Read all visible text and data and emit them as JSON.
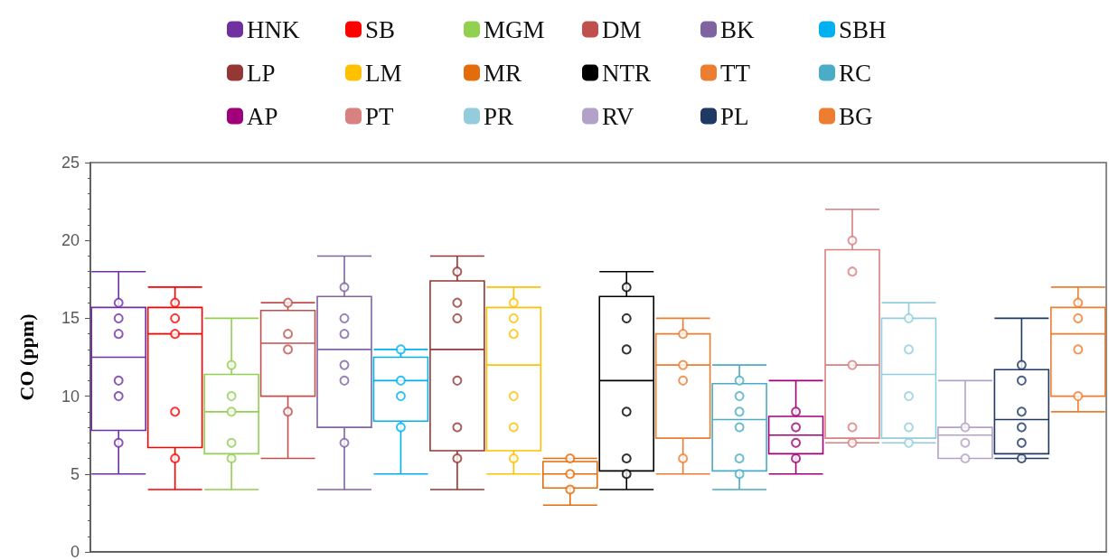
{
  "chart_data": {
    "type": "box",
    "ylabel": "CO (ppm)",
    "categories": [
      null,
      null,
      null,
      null,
      null,
      null,
      null,
      null,
      null,
      null,
      null,
      null,
      null,
      null,
      null,
      null,
      null,
      null
    ],
    "ylim": [
      0,
      25
    ],
    "yticks": [
      0,
      5,
      10,
      15,
      20,
      25
    ],
    "legend": "top",
    "marker": "circle",
    "grid": false,
    "series": [
      {
        "name": "HNK",
        "color": "#7030a0",
        "boxes": [
          {
            "low": 5,
            "q1": 7.8,
            "median": 12.5,
            "q3": 15.7,
            "high": 18,
            "outliers": [
              16,
              15,
              14,
              11,
              10,
              7
            ]
          },
          null,
          null,
          null,
          null,
          null,
          null,
          null,
          null,
          null,
          null,
          null,
          null,
          null,
          null,
          null,
          null,
          null
        ]
      },
      {
        "name": "SB",
        "color": "#ff0000",
        "boxes": [
          null,
          {
            "low": 4,
            "q1": 6.7,
            "median": 14,
            "q3": 15.7,
            "high": 17,
            "outliers": [
              16,
              15,
              14,
              9,
              6
            ]
          },
          null,
          null,
          null,
          null,
          null,
          null,
          null,
          null,
          null,
          null,
          null,
          null,
          null,
          null,
          null,
          null
        ]
      },
      {
        "name": "MGM",
        "color": "#92d050",
        "boxes": [
          null,
          null,
          {
            "low": 4,
            "q1": 6.3,
            "median": 9,
            "q3": 11.4,
            "high": 15,
            "outliers": [
              12,
              10,
              9,
              7,
              6
            ]
          },
          null,
          null,
          null,
          null,
          null,
          null,
          null,
          null,
          null,
          null,
          null,
          null,
          null,
          null,
          null
        ]
      },
      {
        "name": "DM",
        "color": "#c0504d",
        "boxes": [
          null,
          null,
          null,
          {
            "low": 6,
            "q1": 10,
            "median": 13.4,
            "q3": 15.5,
            "high": 16,
            "outliers": [
              16,
              14,
              13,
              9
            ]
          },
          null,
          null,
          null,
          null,
          null,
          null,
          null,
          null,
          null,
          null,
          null,
          null,
          null,
          null
        ]
      },
      {
        "name": "BK",
        "color": "#8064a2",
        "boxes": [
          null,
          null,
          null,
          null,
          {
            "low": 4,
            "q1": 8,
            "median": 13,
            "q3": 16.4,
            "high": 19,
            "outliers": [
              17,
              15,
              14,
              12,
              11,
              7
            ]
          },
          null,
          null,
          null,
          null,
          null,
          null,
          null,
          null,
          null,
          null,
          null,
          null,
          null
        ]
      },
      {
        "name": "SBH",
        "color": "#00b0f0",
        "boxes": [
          null,
          null,
          null,
          null,
          null,
          {
            "low": 5,
            "q1": 8.4,
            "median": 11,
            "q3": 12.5,
            "high": 13,
            "outliers": [
              13,
              11,
              10,
              8
            ]
          },
          null,
          null,
          null,
          null,
          null,
          null,
          null,
          null,
          null,
          null,
          null,
          null
        ]
      },
      {
        "name": "LP",
        "color": "#953735",
        "boxes": [
          null,
          null,
          null,
          null,
          null,
          null,
          {
            "low": 4,
            "q1": 6.5,
            "median": 13,
            "q3": 17.4,
            "high": 19,
            "outliers": [
              18,
              16,
              15,
              11,
              8,
              6
            ]
          },
          null,
          null,
          null,
          null,
          null,
          null,
          null,
          null,
          null,
          null,
          null
        ]
      },
      {
        "name": "LM",
        "color": "#ffc000",
        "boxes": [
          null,
          null,
          null,
          null,
          null,
          null,
          null,
          {
            "low": 5,
            "q1": 6.5,
            "median": 12,
            "q3": 15.7,
            "high": 17,
            "outliers": [
              16,
              15,
              14,
              10,
              8,
              6
            ]
          },
          null,
          null,
          null,
          null,
          null,
          null,
          null,
          null,
          null,
          null
        ]
      },
      {
        "name": "MR",
        "color": "#e46c0a",
        "boxes": [
          null,
          null,
          null,
          null,
          null,
          null,
          null,
          null,
          {
            "low": 3,
            "q1": 4.1,
            "median": 5,
            "q3": 5.8,
            "high": 6,
            "outliers": [
              6,
              5,
              4
            ]
          },
          null,
          null,
          null,
          null,
          null,
          null,
          null,
          null,
          null
        ]
      },
      {
        "name": "NTR",
        "color": "#000000",
        "boxes": [
          null,
          null,
          null,
          null,
          null,
          null,
          null,
          null,
          null,
          {
            "low": 4,
            "q1": 5.2,
            "median": 11,
            "q3": 16.4,
            "high": 18,
            "outliers": [
              17,
              15,
              13,
              9,
              6,
              5
            ]
          },
          null,
          null,
          null,
          null,
          null,
          null,
          null,
          null
        ]
      },
      {
        "name": "TT",
        "color": "#ed7d31",
        "boxes": [
          null,
          null,
          null,
          null,
          null,
          null,
          null,
          null,
          null,
          null,
          {
            "low": 5,
            "q1": 7.3,
            "median": 12,
            "q3": 14,
            "high": 15,
            "outliers": [
              14,
              12,
              11,
              6
            ]
          },
          null,
          null,
          null,
          null,
          null,
          null,
          null
        ]
      },
      {
        "name": "RC",
        "color": "#4bacc6",
        "boxes": [
          null,
          null,
          null,
          null,
          null,
          null,
          null,
          null,
          null,
          null,
          null,
          {
            "low": 4,
            "q1": 5.2,
            "median": 8.5,
            "q3": 10.8,
            "high": 12,
            "outliers": [
              11,
              10,
              9,
              8,
              6,
              5
            ]
          },
          null,
          null,
          null,
          null,
          null,
          null
        ]
      },
      {
        "name": "AP",
        "color": "#a0007a",
        "boxes": [
          null,
          null,
          null,
          null,
          null,
          null,
          null,
          null,
          null,
          null,
          null,
          null,
          {
            "low": 5,
            "q1": 6.3,
            "median": 7.5,
            "q3": 8.7,
            "high": 11,
            "outliers": [
              9,
              8,
              7,
              6
            ]
          },
          null,
          null,
          null,
          null,
          null
        ]
      },
      {
        "name": "PT",
        "color": "#d98080",
        "boxes": [
          null,
          null,
          null,
          null,
          null,
          null,
          null,
          null,
          null,
          null,
          null,
          null,
          null,
          {
            "low": 7,
            "q1": 7.3,
            "median": 12,
            "q3": 19.4,
            "high": 22,
            "outliers": [
              20,
              18,
              12,
              8,
              7
            ]
          },
          null,
          null,
          null,
          null
        ]
      },
      {
        "name": "PR",
        "color": "#93cddd",
        "boxes": [
          null,
          null,
          null,
          null,
          null,
          null,
          null,
          null,
          null,
          null,
          null,
          null,
          null,
          null,
          {
            "low": 7,
            "q1": 7.3,
            "median": 11.4,
            "q3": 15,
            "high": 16,
            "outliers": [
              15,
              13,
              10,
              8,
              7
            ]
          },
          null,
          null,
          null
        ]
      },
      {
        "name": "RV",
        "color": "#b3a2c7",
        "boxes": [
          null,
          null,
          null,
          null,
          null,
          null,
          null,
          null,
          null,
          null,
          null,
          null,
          null,
          null,
          null,
          {
            "low": 6,
            "q1": 6,
            "median": 7.5,
            "q3": 8,
            "high": 11,
            "outliers": [
              8,
              7,
              6
            ]
          },
          null,
          null
        ]
      },
      {
        "name": "PL",
        "color": "#1f3864",
        "boxes": [
          null,
          null,
          null,
          null,
          null,
          null,
          null,
          null,
          null,
          null,
          null,
          null,
          null,
          null,
          null,
          null,
          {
            "low": 6,
            "q1": 6.3,
            "median": 8.5,
            "q3": 11.7,
            "high": 15,
            "outliers": [
              12,
              11,
              9,
              8,
              7,
              6
            ]
          },
          null
        ]
      },
      {
        "name": "BG",
        "color": "#ed7d31",
        "boxes": [
          null,
          null,
          null,
          null,
          null,
          null,
          null,
          null,
          null,
          null,
          null,
          null,
          null,
          null,
          null,
          null,
          null,
          {
            "low": 9,
            "q1": 10,
            "median": 14,
            "q3": 15.7,
            "high": 17,
            "outliers": [
              16,
              15,
              13,
              10
            ]
          }
        ]
      }
    ]
  }
}
